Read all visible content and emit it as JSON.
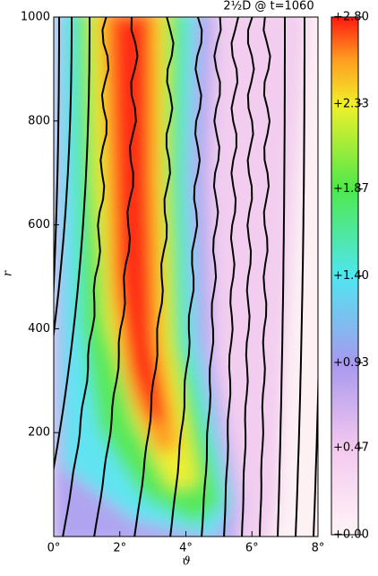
{
  "chart_data": {
    "type": "heatmap",
    "title": "2½D @ t=1060",
    "x_label": "ϑ",
    "y_label": "r",
    "xlim": [
      0,
      8
    ],
    "xticks": [
      {
        "value": 0,
        "label": "0°"
      },
      {
        "value": 2,
        "label": "2°"
      },
      {
        "value": 4,
        "label": "4°"
      },
      {
        "value": 6,
        "label": "6°"
      },
      {
        "value": 8,
        "label": "8°"
      }
    ],
    "ylim": [
      0,
      1000
    ],
    "yticks": [
      200,
      400,
      600,
      800,
      1000
    ],
    "colorbar_lim": [
      0,
      2.8
    ],
    "colorbar_ticks": [
      {
        "value": 2.8,
        "label": "+2.80"
      },
      {
        "value": 2.33,
        "label": "+2.33"
      },
      {
        "value": 1.87,
        "label": "+1.87"
      },
      {
        "value": 1.4,
        "label": "+1.40"
      },
      {
        "value": 0.93,
        "label": "+0.93"
      },
      {
        "value": 0.47,
        "label": "+0.47"
      },
      {
        "value": 0,
        "label": "+0.00"
      }
    ]
  }
}
